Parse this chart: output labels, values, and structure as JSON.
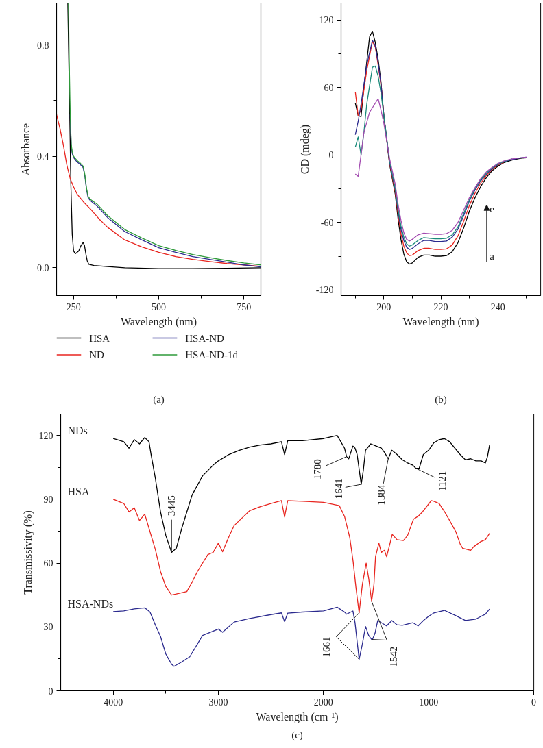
{
  "chart_data": [
    {
      "type": "line",
      "xlabel": "Wavelength (nm)",
      "ylabel": "Absorbance",
      "xlim": [
        200,
        800
      ],
      "ylim": [
        -0.1,
        0.95
      ],
      "xticks": [
        250,
        {
          "value": 375,
          "label": null
        },
        500,
        {
          "value": 625,
          "label": null
        },
        750
      ],
      "yticks": [
        {
          "value": 0,
          "label": "0.0"
        },
        {
          "value": 0.2,
          "label": null
        },
        0.4,
        {
          "value": 0.6,
          "label": null
        },
        0.8
      ],
      "legend": "bottom",
      "annotations": [
        "(a)"
      ],
      "series": [
        {
          "name": "HSA",
          "color": "#000000",
          "x": [
            233,
            238,
            242,
            246,
            250,
            255,
            265,
            272,
            278,
            282,
            286,
            290,
            295,
            310,
            350,
            400,
            500,
            600,
            700,
            800
          ],
          "values": [
            0.95,
            0.6,
            0.3,
            0.12,
            0.06,
            0.05,
            0.06,
            0.08,
            0.09,
            0.08,
            0.05,
            0.025,
            0.012,
            0.008,
            0.004,
            0.0,
            -0.003,
            -0.003,
            -0.002,
            0.0
          ]
        },
        {
          "name": "ND",
          "color": "#e8251f",
          "x": [
            200,
            210,
            220,
            230,
            240,
            250,
            260,
            280,
            300,
            325,
            350,
            400,
            450,
            500,
            550,
            600,
            650,
            700,
            750,
            800
          ],
          "values": [
            0.55,
            0.5,
            0.44,
            0.37,
            0.32,
            0.29,
            0.265,
            0.235,
            0.21,
            0.175,
            0.145,
            0.1,
            0.075,
            0.055,
            0.04,
            0.03,
            0.022,
            0.015,
            0.01,
            0.005
          ]
        },
        {
          "name": "HSA-ND",
          "color": "#2b2a8e",
          "x": [
            240,
            243,
            246,
            250,
            260,
            270,
            278,
            283,
            288,
            293,
            300,
            320,
            350,
            400,
            450,
            500,
            550,
            600,
            650,
            700,
            750,
            800
          ],
          "values": [
            0.55,
            0.44,
            0.41,
            0.395,
            0.38,
            0.37,
            0.36,
            0.33,
            0.28,
            0.25,
            0.24,
            0.22,
            0.18,
            0.13,
            0.1,
            0.072,
            0.055,
            0.04,
            0.03,
            0.02,
            0.01,
            0.003
          ]
        },
        {
          "name": "HSA-ND-1d",
          "color": "#2e9a3a",
          "x": [
            235,
            237,
            240,
            243,
            246,
            250,
            260,
            270,
            278,
            283,
            288,
            293,
            300,
            320,
            350,
            400,
            450,
            500,
            550,
            600,
            650,
            700,
            750,
            800
          ],
          "values": [
            0.95,
            0.76,
            0.56,
            0.445,
            0.415,
            0.4,
            0.385,
            0.375,
            0.365,
            0.335,
            0.285,
            0.255,
            0.245,
            0.227,
            0.187,
            0.137,
            0.107,
            0.079,
            0.062,
            0.047,
            0.036,
            0.026,
            0.017,
            0.01
          ]
        }
      ]
    },
    {
      "type": "line",
      "xlabel": "Wavelength (nm)",
      "ylabel": "CD (mdeg)",
      "xlim": [
        185,
        255
      ],
      "ylim": [
        -125,
        135
      ],
      "xticks": [
        {
          "value": 190,
          "label": null
        },
        200,
        {
          "value": 210,
          "label": null
        },
        220,
        {
          "value": 230,
          "label": null
        },
        240,
        {
          "value": 250,
          "label": null
        }
      ],
      "yticks": [
        -120,
        {
          "value": -90,
          "label": null
        },
        -60,
        {
          "value": -30,
          "label": null
        },
        0,
        {
          "value": 30,
          "label": null
        },
        60,
        {
          "value": 90,
          "label": null
        },
        120
      ],
      "annotations": [
        "a",
        "e",
        "(b)"
      ],
      "series": [
        {
          "color": "#000000",
          "x": [
            190,
            191,
            192,
            193,
            195,
            196,
            197,
            198,
            199,
            200,
            202,
            204,
            205,
            206,
            207,
            208,
            209,
            210,
            212,
            214,
            216,
            218,
            220,
            222,
            224,
            226,
            228,
            230,
            232,
            234,
            236,
            238,
            240,
            242,
            245,
            248,
            250
          ],
          "values": [
            46,
            35,
            34,
            60,
            105,
            110,
            100,
            85,
            65,
            35,
            -8,
            -35,
            -57,
            -75,
            -88,
            -95,
            -97,
            -96,
            -91,
            -89,
            -89,
            -90,
            -90,
            -89.5,
            -86,
            -78,
            -65,
            -50,
            -38,
            -28,
            -20,
            -14,
            -10,
            -7,
            -4.5,
            -3,
            -2.5
          ]
        },
        {
          "color": "#e8251f",
          "x": [
            190,
            191,
            192,
            194,
            196,
            197,
            198,
            199,
            200,
            202,
            204,
            205,
            206,
            207,
            208,
            209,
            210,
            212,
            214,
            216,
            218,
            220,
            222,
            224,
            226,
            228,
            230,
            232,
            234,
            236,
            238,
            240,
            242
          ],
          "values": [
            56,
            35,
            40,
            75,
            101,
            96,
            80,
            62,
            35,
            -7,
            -33,
            -53,
            -70,
            -81,
            -87,
            -89.5,
            -89,
            -85,
            -83,
            -83,
            -84,
            -84,
            -83.5,
            -80,
            -72,
            -59,
            -45,
            -34,
            -25,
            -18,
            -13,
            -9,
            -6.5
          ]
        },
        {
          "color": "#2b2a8e",
          "x": [
            190,
            191,
            192,
            194,
            196,
            197,
            198,
            199,
            200,
            202,
            204,
            205,
            206,
            207,
            208,
            209,
            210,
            212,
            214,
            216,
            218,
            220,
            222,
            224,
            226,
            228,
            230,
            232,
            234,
            236,
            238,
            240,
            242,
            245,
            248,
            250
          ],
          "values": [
            18,
            30,
            45,
            80,
            102,
            97,
            82,
            63,
            35,
            -6,
            -31,
            -50,
            -66,
            -76,
            -82,
            -84,
            -83,
            -79,
            -76,
            -76,
            -77,
            -77,
            -76.5,
            -73,
            -66,
            -54,
            -41,
            -31,
            -23,
            -17,
            -12,
            -8.5,
            -6,
            -4,
            -2.5,
            -2
          ]
        },
        {
          "color": "#1a8a7a",
          "x": [
            190,
            191,
            192,
            193,
            194,
            196,
            197,
            198,
            199,
            200,
            202,
            204,
            205,
            206,
            207,
            208,
            209,
            210,
            212,
            214,
            216,
            218,
            220,
            222,
            224,
            226,
            228,
            230,
            232,
            234,
            236,
            238,
            240,
            242,
            245
          ],
          "values": [
            7,
            16,
            0,
            20,
            45,
            78,
            79,
            70,
            55,
            35,
            -5,
            -30,
            -48,
            -63,
            -73,
            -79,
            -81,
            -80,
            -76,
            -73.5,
            -74,
            -74.5,
            -74.5,
            -74,
            -71,
            -64,
            -52,
            -40,
            -30,
            -22,
            -16,
            -11.5,
            -8,
            -6,
            -3.5
          ]
        },
        {
          "color": "#a24bb0",
          "x": [
            190,
            191,
            192,
            193,
            195,
            196,
            198,
            199,
            200,
            202,
            204,
            205,
            206,
            207,
            208,
            209,
            210,
            212,
            214,
            216,
            218,
            220,
            222,
            224,
            226,
            228,
            230,
            232,
            234,
            236,
            238,
            240,
            242,
            245,
            248,
            250
          ],
          "values": [
            -17,
            -19,
            0,
            20,
            38,
            42,
            50,
            40,
            28,
            -3,
            -26,
            -44,
            -58,
            -69,
            -75,
            -76.5,
            -75,
            -71,
            -69.5,
            -70,
            -70.5,
            -70.5,
            -70,
            -67,
            -60,
            -49,
            -38,
            -29,
            -21,
            -15,
            -11,
            -7.5,
            -5.5,
            -3.5,
            -2.5,
            -2
          ]
        }
      ]
    },
    {
      "type": "line",
      "xlabel": "Wavelength (cm⁻¹)",
      "ylabel": "Transmissivity (%)",
      "xlim": [
        4500,
        0
      ],
      "ylim": [
        0,
        130
      ],
      "xticks": [
        4000,
        {
          "value": 3500,
          "label": null
        },
        3000,
        {
          "value": 2500,
          "label": null
        },
        2000,
        {
          "value": 1500,
          "label": null
        },
        1000,
        {
          "value": 500,
          "label": null
        },
        0
      ],
      "yticks": [
        0,
        {
          "value": 15,
          "label": null
        },
        30,
        {
          "value": 45,
          "label": null
        },
        60,
        {
          "value": 75,
          "label": null
        },
        90,
        {
          "value": 105,
          "label": null
        },
        120
      ],
      "annotations": [
        {
          "text": "3445",
          "x": 3445,
          "y": 65
        },
        {
          "text": "1780",
          "x": 1780,
          "y": 110
        },
        {
          "text": "1641",
          "x": 1641,
          "y": 97
        },
        {
          "text": "1384",
          "x": 1384,
          "y": 109
        },
        {
          "text": "1121",
          "x": 1121,
          "y": 104.5
        },
        {
          "text": "1661",
          "x": 1661,
          "y": 36.6
        },
        {
          "text": "1542",
          "x": 1542,
          "y": 42
        },
        "(c)"
      ],
      "series": [
        {
          "name": "NDs",
          "color": "#000000",
          "x": [
            4000,
            3900,
            3850,
            3800,
            3750,
            3700,
            3660,
            3640,
            3600,
            3550,
            3500,
            3445,
            3400,
            3350,
            3300,
            3250,
            3150,
            3050,
            3000,
            2900,
            2800,
            2700,
            2600,
            2500,
            2400,
            2370,
            2340,
            2200,
            2000,
            1870,
            1800,
            1780,
            1760,
            1720,
            1700,
            1680,
            1641,
            1620,
            1600,
            1550,
            1500,
            1450,
            1420,
            1384,
            1350,
            1300,
            1250,
            1200,
            1150,
            1121,
            1090,
            1050,
            1000,
            950,
            900,
            850,
            800,
            750,
            700,
            650,
            600,
            550,
            500,
            460,
            440,
            420
          ],
          "values": [
            118.5,
            117,
            114,
            118,
            116,
            119,
            117,
            111,
            100,
            84,
            73,
            65,
            67,
            76,
            84,
            92,
            101,
            106,
            108,
            111,
            113,
            114.5,
            115.5,
            116,
            117,
            111,
            117.5,
            117.5,
            118.5,
            120,
            114,
            110,
            109,
            115,
            114,
            111,
            97,
            104,
            113,
            116,
            115,
            114,
            112,
            109,
            113,
            111,
            108.5,
            107,
            106,
            104.5,
            104.5,
            111,
            113,
            116.5,
            118,
            118.5,
            117,
            114,
            111,
            108.5,
            109,
            108,
            108,
            107,
            110,
            115.5
          ]
        },
        {
          "name": "HSA",
          "color": "#e8251f",
          "x": [
            4000,
            3900,
            3850,
            3800,
            3750,
            3700,
            3650,
            3600,
            3550,
            3500,
            3445,
            3400,
            3300,
            3250,
            3200,
            3100,
            3050,
            3000,
            2960,
            2900,
            2850,
            2800,
            2700,
            2600,
            2500,
            2400,
            2370,
            2340,
            2200,
            2000,
            1850,
            1800,
            1780,
            1750,
            1718,
            1690,
            1661,
            1630,
            1594,
            1569,
            1542,
            1520,
            1505,
            1473,
            1450,
            1420,
            1399,
            1346,
            1300,
            1240,
            1200,
            1144,
            1100,
            1059,
            975,
            950,
            900,
            847,
            800,
            741,
            700,
            677,
            600,
            571,
            507,
            460,
            420
          ],
          "values": [
            90,
            88,
            84,
            86,
            80,
            83,
            74.7,
            66.5,
            56,
            49,
            45,
            45.5,
            46.6,
            51,
            56,
            64,
            65,
            69.4,
            65.3,
            72.4,
            77.6,
            80,
            84.7,
            86.5,
            88,
            89.3,
            81.7,
            89.3,
            89,
            88.5,
            87,
            82,
            78,
            72,
            60.7,
            48,
            36.6,
            50,
            60,
            52.5,
            42,
            50,
            63,
            69.4,
            65,
            66,
            63,
            73.5,
            71,
            70.6,
            73,
            80.6,
            82,
            84,
            89.3,
            89,
            88,
            84,
            80,
            74.7,
            69,
            67,
            66,
            67.7,
            70,
            71,
            74
          ]
        },
        {
          "name": "HSA-NDs",
          "color": "#2b2a8e",
          "x": [
            4000,
            3900,
            3800,
            3700,
            3650,
            3600,
            3550,
            3500,
            3445,
            3421,
            3350,
            3272,
            3150,
            3000,
            2960,
            2850,
            2700,
            2500,
            2400,
            2370,
            2340,
            2200,
            2000,
            1870,
            1800,
            1780,
            1720,
            1700,
            1661,
            1630,
            1600,
            1570,
            1537,
            1510,
            1484,
            1450,
            1400,
            1350,
            1300,
            1250,
            1150,
            1100,
            1050,
            1000,
            950,
            850,
            750,
            650,
            550,
            500,
            460,
            420
          ],
          "values": [
            37.2,
            37.5,
            38.5,
            39,
            37,
            31,
            25.5,
            17.3,
            12.5,
            11.5,
            13.5,
            16,
            26,
            29,
            27.5,
            32.3,
            34,
            35.8,
            36.6,
            32.5,
            36.5,
            37,
            37.5,
            39.3,
            37,
            36,
            37.5,
            32,
            14.8,
            22,
            30.2,
            26,
            23.8,
            27,
            33,
            32,
            30.5,
            33,
            31,
            30.8,
            32,
            30.5,
            33,
            35,
            36.6,
            37.8,
            35.5,
            33,
            33.7,
            35,
            36,
            38.4
          ]
        }
      ]
    }
  ]
}
